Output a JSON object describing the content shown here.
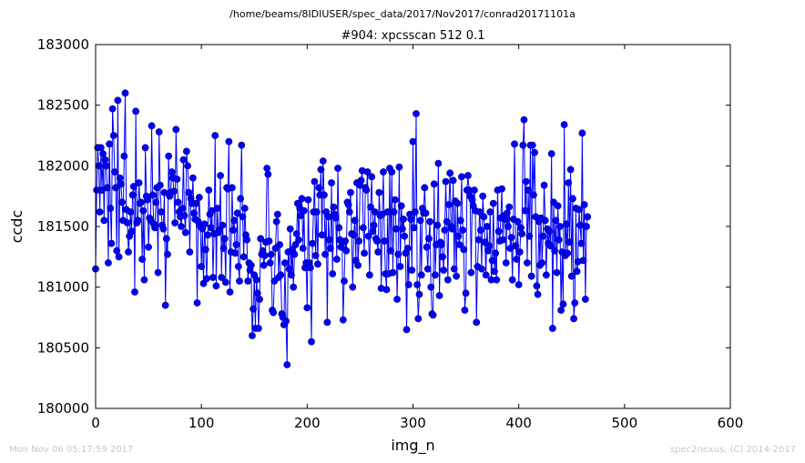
{
  "suptitle": "/home/beams/8IDIUSER/spec_data/2017/Nov2017/conrad20171101a",
  "footer": {
    "left": "Mon Nov 06 05:17:59 2017",
    "right": "spec2nexus, (C) 2014-2017"
  },
  "colors": {
    "series": "#0000ff",
    "marker_edge": "#000080",
    "axes": "#000000",
    "footer": "#c8c8c8"
  },
  "chart_data": {
    "type": "line",
    "title": "#904: xpcsscan 512 0.1",
    "xlabel": "img_n",
    "ylabel": "ccdc",
    "xlim": [
      0,
      600
    ],
    "ylim": [
      180000,
      183000
    ],
    "xticks": [
      0,
      100,
      200,
      300,
      400,
      500,
      600
    ],
    "yticks": [
      180000,
      180500,
      181000,
      181500,
      182000,
      182500,
      183000
    ],
    "xtick_labels": [
      "0",
      "100",
      "200",
      "300",
      "400",
      "500",
      "600"
    ],
    "ytick_labels": [
      "180000",
      "180500",
      "181000",
      "181500",
      "182000",
      "182500",
      "183000"
    ],
    "grid": false,
    "markers": "circle",
    "x_start": 0,
    "x_step": 1,
    "series": [
      {
        "values": [
          181150,
          181800,
          182150,
          182000,
          181620,
          182150,
          181800,
          182100,
          181550,
          182050,
          182000,
          181820,
          181200,
          182180,
          181650,
          181360,
          182470,
          182250,
          181950,
          181820,
          181300,
          182540,
          181250,
          181900,
          181850,
          181700,
          181550,
          182080,
          182600,
          181640,
          181530,
          181290,
          181420,
          181620,
          181460,
          181760,
          181830,
          180960,
          182450,
          181530,
          181550,
          181860,
          181690,
          181700,
          181230,
          181630,
          181060,
          182150,
          181750,
          181720,
          181330,
          181570,
          181550,
          182330,
          181760,
          181520,
          181490,
          181700,
          181820,
          181120,
          182280,
          181840,
          181620,
          181510,
          181480,
          181780,
          180850,
          181400,
          181270,
          182080,
          181750,
          181780,
          181950,
          181900,
          181790,
          181530,
          182300,
          181890,
          181700,
          181620,
          181580,
          181500,
          181650,
          182050,
          181590,
          181450,
          182120,
          182000,
          181780,
          181290,
          181730,
          181690,
          181900,
          181610,
          181560,
          181690,
          180870,
          181540,
          181740,
          181500,
          181170,
          181480,
          181030,
          181520,
          181310,
          181070,
          181430,
          181800,
          181600,
          181490,
          181630,
          181080,
          181440,
          182250,
          181010,
          181650,
          181450,
          181470,
          181920,
          181080,
          181510,
          181320,
          181400,
          181040,
          181820,
          181810,
          182200,
          180960,
          181290,
          181820,
          181470,
          181550,
          181280,
          181350,
          181610,
          181170,
          181050,
          181730,
          182170,
          181580,
          181250,
          181650,
          181430,
          181390,
          181050,
          181200,
          181140,
          181180,
          180600,
          180820,
          181100,
          180660,
          181060,
          180950,
          180660,
          180900,
          181400,
          181270,
          181300,
          181180,
          181260,
          181370,
          181980,
          181930,
          181380,
          181200,
          181270,
          180810,
          180790,
          181050,
          181320,
          181540,
          181600,
          181080,
          181350,
          181100,
          180780,
          180750,
          180690,
          181200,
          180720,
          180360,
          181290,
          181150,
          181480,
          181100,
          181310,
          181000,
          181270,
          181350,
          181440,
          181690,
          181390,
          181650,
          181590,
          181730,
          181320,
          181630,
          181160,
          181200,
          180830,
          181720,
          181200,
          181160,
          180550,
          181360,
          181620,
          181870,
          181260,
          181620,
          181190,
          181820,
          181760,
          181970,
          181430,
          182040,
          181760,
          181270,
          181620,
          180710,
          181580,
          181390,
          181320,
          181860,
          181110,
          181660,
          181600,
          181570,
          181230,
          181980,
          181490,
          181390,
          181330,
          181370,
          180730,
          181050,
          181380,
          181300,
          181700,
          181680,
          181620,
          181780,
          181440,
          181000,
          181430,
          181550,
          181220,
          181860,
          181180,
          181380,
          181840,
          181880,
          181960,
          181490,
          181280,
          181820,
          181800,
          181950,
          181420,
          181100,
          181660,
          181910,
          181460,
          181510,
          181620,
          181400,
          181380,
          181290,
          181780,
          181590,
          180990,
          181600,
          181950,
          181380,
          181110,
          180980,
          181620,
          181110,
          181980,
          181300,
          181950,
          181120,
          181620,
          181720,
          181480,
          180900,
          181270,
          181990,
          181170,
          181670,
          181480,
          181560,
          181420,
          181280,
          180650,
          181320,
          181020,
          181600,
          181560,
          181140,
          182200,
          181490,
          181620,
          182430,
          181020,
          180740,
          180940,
          181550,
          181100,
          181650,
          181610,
          181820,
          181610,
          181330,
          181150,
          181400,
          181540,
          181000,
          180780,
          180770,
          181850,
          181100,
          181350,
          181510,
          182020,
          180930,
          181370,
          181350,
          181250,
          181140,
          181470,
          181870,
          181540,
          181060,
          181680,
          181940,
          181500,
          181480,
          181880,
          181150,
          181710,
          181090,
          181690,
          181420,
          181350,
          181550,
          181910,
          181470,
          181310,
          180810,
          180950,
          181800,
          181920,
          181800,
          181750,
          181120,
          181720,
          181670,
          181800,
          181630,
          180710,
          181170,
          181390,
          181620,
          181470,
          181150,
          181750,
          181580,
          181370,
          181100,
          181500,
          181300,
          181340,
          181620,
          181060,
          181220,
          181690,
          181130,
          181280,
          181060,
          181800,
          181460,
          181380,
          181570,
          181810,
          181390,
          181590,
          181560,
          181200,
          181610,
          181500,
          181660,
          181320,
          181410,
          181060,
          181560,
          182180,
          181340,
          181230,
          181540,
          181020,
          181290,
          181490,
          181440,
          182170,
          182380,
          181630,
          181870,
          181200,
          181800,
          181420,
          182170,
          181090,
          182170,
          181760,
          182110,
          181580,
          181010,
          180940,
          181540,
          181180,
          181570,
          181200,
          181420,
          181840,
          181550,
          181100,
          181480,
          181360,
          181460,
          181340,
          182100,
          180660,
          181700,
          181300,
          181550,
          181120,
          181670,
          181390,
          181500,
          180810,
          181290,
          180860,
          182340,
          181260,
          181520,
          181280,
          181860,
          181370,
          181970,
          181090,
          181730,
          180740,
          180870,
          181650,
          181130,
          181210,
          181640,
          181510,
          181360,
          182270,
          181220,
          181680,
          180900,
          181500,
          181580
        ]
      }
    ]
  }
}
